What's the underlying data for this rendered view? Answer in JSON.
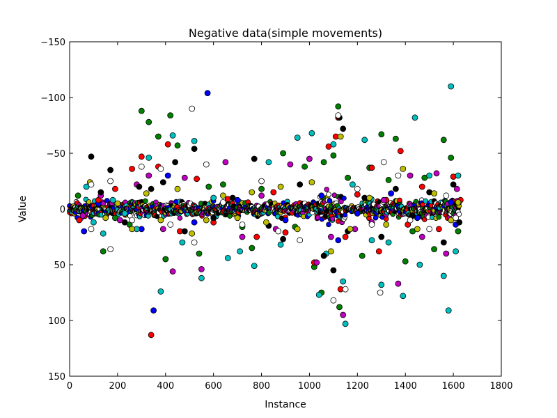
{
  "chart_data": {
    "type": "scatter",
    "title": "Negative data(simple movements)",
    "xlabel": "Instance",
    "ylabel": "Value",
    "xlim": [
      0,
      1800
    ],
    "ylim": [
      150,
      -150
    ],
    "y_axis_inverted": true,
    "grid": false,
    "legend": "none",
    "x_ticks": [
      0,
      200,
      400,
      600,
      800,
      1000,
      1200,
      1400,
      1600,
      1800
    ],
    "x_tick_labels": [
      "0",
      "200",
      "400",
      "600",
      "800",
      "1000",
      "1200",
      "1400",
      "1600",
      "1800"
    ],
    "y_ticks": [
      -150,
      -100,
      -50,
      0,
      50,
      100,
      150
    ],
    "y_tick_labels": [
      "−150",
      "−100",
      "−50",
      "0",
      "50",
      "100",
      "150"
    ],
    "instance_range": [
      0,
      1625
    ],
    "series": [
      {
        "color": "#0000ff",
        "points": [
          [
            60,
            20
          ],
          [
            120,
            -5
          ],
          [
            300,
            18
          ],
          [
            350,
            91
          ],
          [
            410,
            -30
          ],
          [
            520,
            12
          ],
          [
            575,
            -104
          ],
          [
            700,
            -8
          ],
          [
            900,
            10
          ],
          [
            1050,
            -12
          ],
          [
            1120,
            28
          ],
          [
            1200,
            4
          ],
          [
            1340,
            -14
          ],
          [
            1450,
            8
          ],
          [
            1590,
            -6
          ],
          [
            1610,
            14
          ]
        ]
      },
      {
        "color": "#008000",
        "points": [
          [
            35,
            -12
          ],
          [
            140,
            38
          ],
          [
            190,
            8
          ],
          [
            250,
            14
          ],
          [
            300,
            -88
          ],
          [
            330,
            -78
          ],
          [
            370,
            -65
          ],
          [
            400,
            45
          ],
          [
            420,
            -84
          ],
          [
            450,
            -57
          ],
          [
            540,
            40
          ],
          [
            580,
            -20
          ],
          [
            640,
            -22
          ],
          [
            720,
            16
          ],
          [
            760,
            35
          ],
          [
            800,
            -18
          ],
          [
            890,
            -50
          ],
          [
            940,
            16
          ],
          [
            980,
            -38
          ],
          [
            1020,
            52
          ],
          [
            1050,
            75
          ],
          [
            1060,
            -42
          ],
          [
            1100,
            -48
          ],
          [
            1120,
            -92
          ],
          [
            1125,
            88
          ],
          [
            1160,
            -28
          ],
          [
            1220,
            42
          ],
          [
            1250,
            -37
          ],
          [
            1300,
            -67
          ],
          [
            1330,
            -26
          ],
          [
            1360,
            -63
          ],
          [
            1400,
            47
          ],
          [
            1430,
            20
          ],
          [
            1480,
            -28
          ],
          [
            1520,
            36
          ],
          [
            1560,
            -62
          ],
          [
            1590,
            -46
          ],
          [
            1620,
            20
          ]
        ]
      },
      {
        "color": "#ff0000",
        "points": [
          [
            40,
            10
          ],
          [
            120,
            -8
          ],
          [
            190,
            -18
          ],
          [
            260,
            -36
          ],
          [
            300,
            -47
          ],
          [
            340,
            113
          ],
          [
            370,
            -38
          ],
          [
            410,
            -58
          ],
          [
            460,
            20
          ],
          [
            530,
            -27
          ],
          [
            600,
            12
          ],
          [
            660,
            -9
          ],
          [
            780,
            25
          ],
          [
            850,
            -15
          ],
          [
            900,
            21
          ],
          [
            1020,
            48
          ],
          [
            1080,
            -56
          ],
          [
            1110,
            -65
          ],
          [
            1120,
            -82
          ],
          [
            1130,
            72
          ],
          [
            1150,
            25
          ],
          [
            1200,
            -13
          ],
          [
            1260,
            -37
          ],
          [
            1290,
            38
          ],
          [
            1320,
            -8
          ],
          [
            1380,
            -52
          ],
          [
            1410,
            14
          ],
          [
            1470,
            -20
          ],
          [
            1540,
            18
          ],
          [
            1600,
            -29
          ],
          [
            1630,
            -8
          ]
        ]
      },
      {
        "color": "#00bfbf",
        "points": [
          [
            70,
            -20
          ],
          [
            100,
            12
          ],
          [
            140,
            22
          ],
          [
            180,
            -8
          ],
          [
            230,
            4
          ],
          [
            280,
            18
          ],
          [
            330,
            -46
          ],
          [
            380,
            74
          ],
          [
            430,
            -66
          ],
          [
            470,
            30
          ],
          [
            520,
            -61
          ],
          [
            550,
            62
          ],
          [
            600,
            -10
          ],
          [
            660,
            44
          ],
          [
            710,
            38
          ],
          [
            770,
            51
          ],
          [
            830,
            -42
          ],
          [
            880,
            32
          ],
          [
            950,
            -64
          ],
          [
            1010,
            -68
          ],
          [
            1040,
            77
          ],
          [
            1070,
            40
          ],
          [
            1100,
            -58
          ],
          [
            1140,
            65
          ],
          [
            1150,
            103
          ],
          [
            1180,
            -22
          ],
          [
            1230,
            -62
          ],
          [
            1260,
            28
          ],
          [
            1300,
            68
          ],
          [
            1330,
            30
          ],
          [
            1390,
            78
          ],
          [
            1440,
            -82
          ],
          [
            1460,
            50
          ],
          [
            1500,
            -30
          ],
          [
            1560,
            60
          ],
          [
            1580,
            91
          ],
          [
            1590,
            -110
          ],
          [
            1610,
            38
          ],
          [
            1620,
            -30
          ]
        ]
      },
      {
        "color": "#bf00bf",
        "points": [
          [
            55,
            6
          ],
          [
            130,
            -12
          ],
          [
            210,
            10
          ],
          [
            280,
            -22
          ],
          [
            330,
            -30
          ],
          [
            390,
            18
          ],
          [
            430,
            56
          ],
          [
            480,
            -28
          ],
          [
            550,
            54
          ],
          [
            650,
            -42
          ],
          [
            720,
            25
          ],
          [
            800,
            -12
          ],
          [
            860,
            18
          ],
          [
            920,
            -40
          ],
          [
            1000,
            -45
          ],
          [
            1030,
            48
          ],
          [
            1090,
            25
          ],
          [
            1140,
            95
          ],
          [
            1190,
            18
          ],
          [
            1260,
            12
          ],
          [
            1310,
            -8
          ],
          [
            1370,
            67
          ],
          [
            1420,
            -30
          ],
          [
            1470,
            25
          ],
          [
            1530,
            -32
          ],
          [
            1570,
            40
          ],
          [
            1615,
            -18
          ]
        ]
      },
      {
        "color": "#000000",
        "points": [
          [
            90,
            -47
          ],
          [
            130,
            -15
          ],
          [
            170,
            -35
          ],
          [
            230,
            12
          ],
          [
            290,
            -20
          ],
          [
            340,
            -18
          ],
          [
            390,
            -24
          ],
          [
            440,
            -42
          ],
          [
            480,
            20
          ],
          [
            520,
            -54
          ],
          [
            600,
            8
          ],
          [
            680,
            -10
          ],
          [
            770,
            -45
          ],
          [
            830,
            15
          ],
          [
            890,
            27
          ],
          [
            960,
            -22
          ],
          [
            1060,
            42
          ],
          [
            1100,
            55
          ],
          [
            1125,
            -82
          ],
          [
            1140,
            -72
          ],
          [
            1160,
            20
          ],
          [
            1230,
            -10
          ],
          [
            1300,
            25
          ],
          [
            1360,
            -18
          ],
          [
            1430,
            6
          ],
          [
            1500,
            -15
          ],
          [
            1560,
            30
          ],
          [
            1600,
            -22
          ],
          [
            1625,
            12
          ]
        ]
      },
      {
        "color": "#bfbf00",
        "points": [
          [
            85,
            -24
          ],
          [
            150,
            8
          ],
          [
            200,
            -5
          ],
          [
            260,
            18
          ],
          [
            320,
            -14
          ],
          [
            380,
            10
          ],
          [
            450,
            -18
          ],
          [
            510,
            22
          ],
          [
            570,
            10
          ],
          [
            640,
            -12
          ],
          [
            700,
            8
          ],
          [
            760,
            -15
          ],
          [
            820,
            12
          ],
          [
            880,
            -20
          ],
          [
            950,
            18
          ],
          [
            1010,
            -24
          ],
          [
            1090,
            38
          ],
          [
            1130,
            -65
          ],
          [
            1170,
            18
          ],
          [
            1250,
            -10
          ],
          [
            1320,
            14
          ],
          [
            1390,
            -36
          ],
          [
            1450,
            18
          ],
          [
            1520,
            -14
          ],
          [
            1590,
            10
          ],
          [
            1620,
            -6
          ]
        ]
      },
      {
        "color": "#ffffff",
        "points": [
          [
            90,
            -22
          ],
          [
            90,
            18
          ],
          [
            170,
            -25
          ],
          [
            170,
            36
          ],
          [
            260,
            10
          ],
          [
            300,
            -38
          ],
          [
            380,
            -36
          ],
          [
            420,
            14
          ],
          [
            510,
            -90
          ],
          [
            520,
            30
          ],
          [
            570,
            -40
          ],
          [
            640,
            -6
          ],
          [
            720,
            14
          ],
          [
            800,
            -25
          ],
          [
            870,
            20
          ],
          [
            960,
            28
          ],
          [
            1100,
            82
          ],
          [
            1120,
            -84
          ],
          [
            1150,
            72
          ],
          [
            1200,
            -18
          ],
          [
            1260,
            14
          ],
          [
            1295,
            75
          ],
          [
            1310,
            -42
          ],
          [
            1370,
            -30
          ],
          [
            1420,
            10
          ],
          [
            1500,
            18
          ],
          [
            1570,
            -12
          ],
          [
            1610,
            8
          ]
        ]
      }
    ]
  }
}
